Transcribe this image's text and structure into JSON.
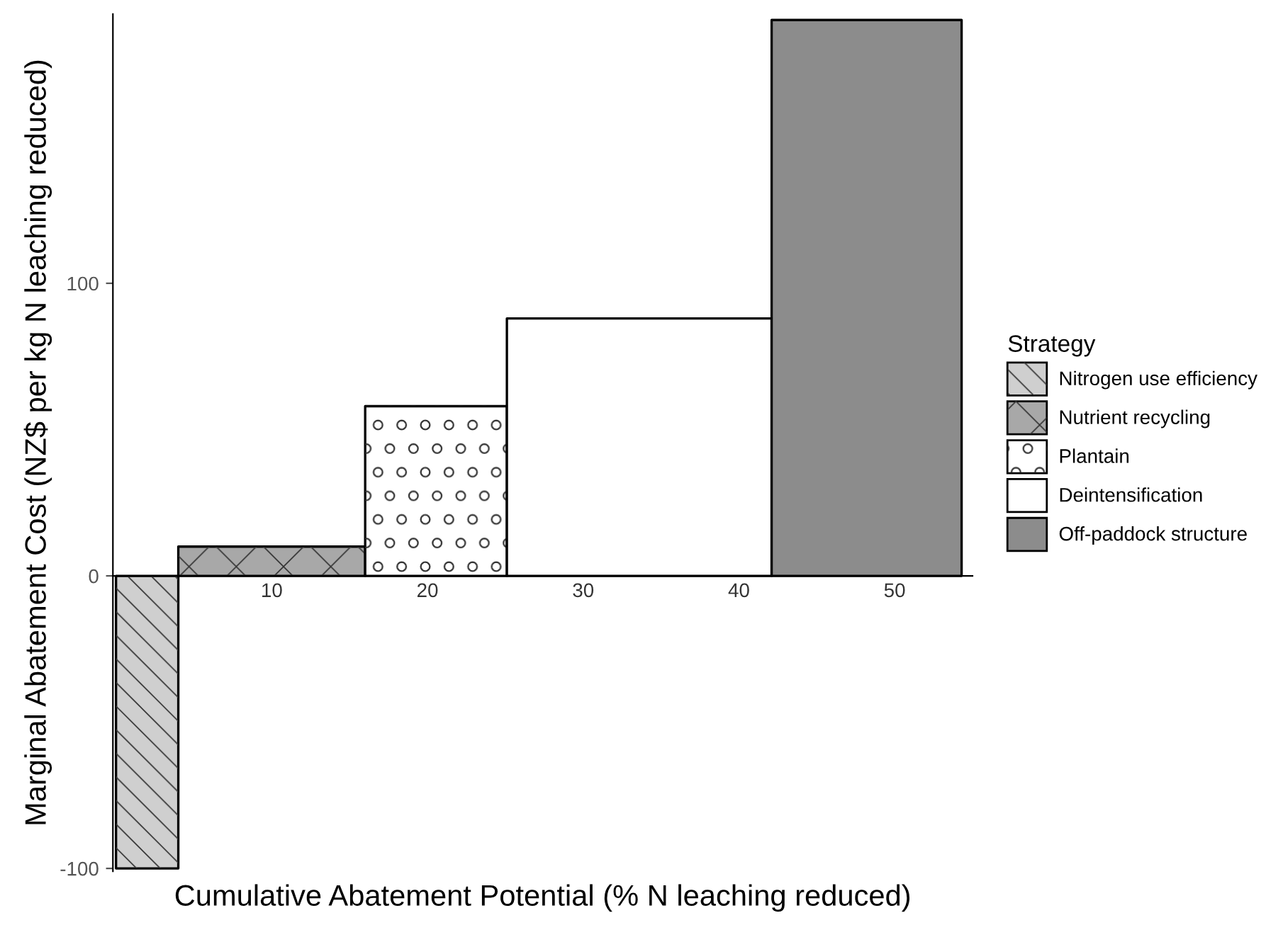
{
  "chart_data": {
    "type": "area",
    "xlabel": "Cumulative Abatement Potential (% N leaching reduced)",
    "ylabel": "Marginal Abatement Cost (NZ$ per kg N leaching reduced)",
    "legend_title": "Strategy",
    "legend": "right",
    "grid": false,
    "xlim": [
      -0.2,
      55
    ],
    "xticks": [
      10,
      20,
      30,
      40,
      50
    ],
    "ylim": [
      -101,
      192
    ],
    "yticks": [
      -100,
      0,
      100
    ],
    "series": [
      {
        "name": "Nitrogen use efficiency",
        "color": "#cfcfcf",
        "x": [
          0,
          4.0
        ],
        "values": [
          -100,
          -100
        ]
      },
      {
        "name": "Nutrient recycling",
        "color": "#a8a8a8",
        "x": [
          4.0,
          16.0
        ],
        "values": [
          10,
          10
        ]
      },
      {
        "name": "Plantain",
        "color": "#ffffff",
        "x": [
          16.0,
          25.1
        ],
        "values": [
          58,
          58
        ]
      },
      {
        "name": "Deintensification",
        "color": "#ffffff",
        "x": [
          25.1,
          42.1
        ],
        "values": [
          88,
          88
        ]
      },
      {
        "name": "Off-paddock structure",
        "color": "#8c8c8c",
        "x": [
          42.1,
          54.3
        ],
        "values": [
          190,
          190
        ]
      }
    ]
  }
}
